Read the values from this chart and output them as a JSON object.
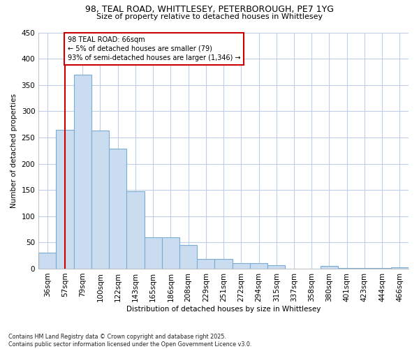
{
  "title_line1": "98, TEAL ROAD, WHITTLESEY, PETERBOROUGH, PE7 1YG",
  "title_line2": "Size of property relative to detached houses in Whittlesey",
  "xlabel": "Distribution of detached houses by size in Whittlesey",
  "ylabel": "Number of detached properties",
  "bins": [
    "36sqm",
    "57sqm",
    "79sqm",
    "100sqm",
    "122sqm",
    "143sqm",
    "165sqm",
    "186sqm",
    "208sqm",
    "229sqm",
    "251sqm",
    "272sqm",
    "294sqm",
    "315sqm",
    "337sqm",
    "358sqm",
    "380sqm",
    "401sqm",
    "423sqm",
    "444sqm",
    "466sqm"
  ],
  "values": [
    30,
    264,
    370,
    263,
    228,
    148,
    60,
    60,
    45,
    18,
    18,
    10,
    10,
    6,
    0,
    0,
    5,
    1,
    1,
    1,
    2
  ],
  "bar_color": "#c9dcf0",
  "bar_edge_color": "#7badd4",
  "annotation_line1": "98 TEAL ROAD: 66sqm",
  "annotation_line2": "← 5% of detached houses are smaller (79)",
  "annotation_line3": "93% of semi-detached houses are larger (1,346) →",
  "vline_x_idx": 1,
  "annotation_box_facecolor": "#ffffff",
  "annotation_box_edgecolor": "#cc0000",
  "vline_color": "#cc0000",
  "grid_color": "#c0cfe8",
  "plot_bg_color": "#ffffff",
  "fig_bg_color": "#ffffff",
  "footer": "Contains HM Land Registry data © Crown copyright and database right 2025.\nContains public sector information licensed under the Open Government Licence v3.0.",
  "ylim": [
    0,
    450
  ],
  "yticks": [
    0,
    50,
    100,
    150,
    200,
    250,
    300,
    350,
    400,
    450
  ]
}
